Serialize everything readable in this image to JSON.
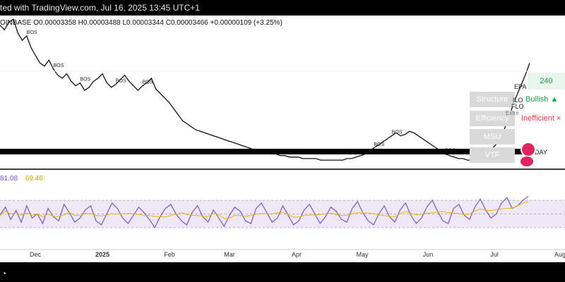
{
  "header": {
    "title": "ted with TradingView.com, Jul 16, 2025 13:45 UTC+1"
  },
  "ohlc": {
    "symbol": "OINBASE",
    "open": "O0.00003358",
    "high": "H0.00003488",
    "low": "L0.00003344",
    "close": "C0.00003466",
    "change": "+0.00000109 (+3.25%)"
  },
  "rsi": {
    "value_a": "81.08",
    "value_b": "69.46",
    "line_color": "#7e57c2",
    "ma_color": "#f2b400"
  },
  "overlay": {
    "price_tag": "240",
    "bullish": "Bullish ▲",
    "inefficient": "Inefficient ×",
    "extreme": "Extre",
    "epa": "EPA",
    "ilo": "ILO",
    "flo": "FLO",
    "day": "DAY",
    "buttons": [
      "Structure",
      "Efficiency",
      "MSU",
      "VTF"
    ]
  },
  "bos_label": "BOS",
  "chart_data": {
    "type": "line",
    "x_ticks": [
      "Dec",
      "2025",
      "Feb",
      "Mar",
      "Apr",
      "May",
      "Jun",
      "Jul",
      "Aug"
    ],
    "price_series": [
      95,
      92,
      97,
      99,
      90,
      85,
      88,
      80,
      75,
      70,
      68,
      72,
      66,
      62,
      60,
      63,
      58,
      55,
      57,
      52,
      54,
      58,
      60,
      63,
      57,
      54,
      56,
      59,
      62,
      58,
      55,
      52,
      55,
      57,
      60,
      53,
      50,
      47,
      44,
      40,
      36,
      32,
      30,
      28,
      26,
      25,
      24,
      23,
      22,
      21,
      20,
      19,
      18,
      17,
      16,
      15,
      14,
      13,
      12,
      12,
      11,
      10,
      10,
      9,
      9,
      8,
      8,
      8,
      7,
      7,
      7,
      7,
      6,
      6,
      6,
      6,
      6,
      6,
      7,
      7,
      8,
      9,
      10,
      12,
      14,
      16,
      18,
      20,
      22,
      24,
      22,
      23,
      25,
      24,
      22,
      20,
      18,
      16,
      14,
      12,
      10,
      9,
      8,
      7,
      7,
      6,
      6,
      7,
      8,
      10,
      12,
      15,
      18,
      24,
      32,
      40,
      48,
      55,
      62,
      70
    ],
    "rsi_series": [
      48,
      60,
      42,
      55,
      38,
      62,
      44,
      50,
      36,
      58,
      46,
      40,
      64,
      52,
      38,
      44,
      56,
      62,
      40,
      34,
      50,
      66,
      58,
      44,
      36,
      48,
      60,
      52,
      42,
      30,
      46,
      58,
      64,
      50,
      40,
      34,
      52,
      62,
      46,
      38,
      56,
      44,
      32,
      48,
      60,
      54,
      40,
      36,
      58,
      66,
      52,
      38,
      44,
      62,
      48,
      34,
      40,
      56,
      64,
      50,
      36,
      46,
      60,
      54,
      42,
      38,
      58,
      68,
      52,
      40,
      34,
      50,
      62,
      46,
      38,
      56,
      66,
      48,
      36,
      44,
      60,
      70,
      54,
      40,
      36,
      58,
      64,
      48,
      42,
      60,
      72,
      56,
      44,
      50,
      66,
      74,
      58,
      62,
      70,
      76
    ],
    "rsi_levels": [
      70,
      50,
      30
    ]
  }
}
